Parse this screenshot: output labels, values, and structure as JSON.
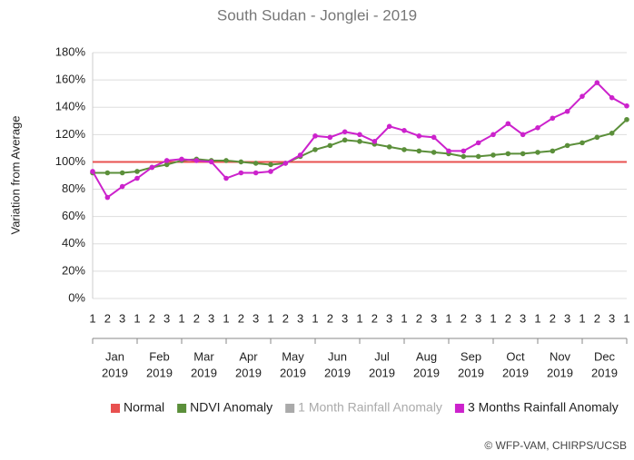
{
  "chart_data": {
    "type": "line",
    "title": "South Sudan - Jonglei - 2019",
    "y_label": "Variation from Average",
    "categories": [
      "1",
      "2",
      "3",
      "1",
      "2",
      "3",
      "1",
      "2",
      "3",
      "1",
      "2",
      "3",
      "1",
      "2",
      "3",
      "1",
      "2",
      "3",
      "1",
      "2",
      "3",
      "1",
      "2",
      "3",
      "1",
      "2",
      "3",
      "1",
      "2",
      "3",
      "1",
      "2",
      "3",
      "1",
      "2",
      "3",
      "1"
    ],
    "month_labels": [
      [
        "Jan",
        "2019"
      ],
      [
        "Feb",
        "2019"
      ],
      [
        "Mar",
        "2019"
      ],
      [
        "Apr",
        "2019"
      ],
      [
        "May",
        "2019"
      ],
      [
        "Jun",
        "2019"
      ],
      [
        "Jul",
        "2019"
      ],
      [
        "Aug",
        "2019"
      ],
      [
        "Sep",
        "2019"
      ],
      [
        "Oct",
        "2019"
      ],
      [
        "Nov",
        "2019"
      ],
      [
        "Dec",
        "2019"
      ]
    ],
    "series": [
      {
        "name": "Normal",
        "color": "#e8504f",
        "markers": false,
        "visible": true,
        "values": [
          100,
          100,
          100,
          100,
          100,
          100,
          100,
          100,
          100,
          100,
          100,
          100,
          100,
          100,
          100,
          100,
          100,
          100,
          100,
          100,
          100,
          100,
          100,
          100,
          100,
          100,
          100,
          100,
          100,
          100,
          100,
          100,
          100,
          100,
          100,
          100,
          100
        ]
      },
      {
        "name": "NDVI Anomaly",
        "color": "#5b8f3a",
        "markers": true,
        "visible": true,
        "values": [
          92,
          92,
          92,
          93,
          96,
          98,
          101,
          102,
          101,
          101,
          100,
          99,
          98,
          99,
          104,
          109,
          112,
          116,
          115,
          113,
          111,
          109,
          108,
          107,
          106,
          104,
          104,
          105,
          106,
          106,
          107,
          108,
          112,
          114,
          118,
          121,
          131
        ]
      },
      {
        "name": "1 Month Rainfall Anomaly",
        "color": "#aaaaaa",
        "markers": true,
        "visible": false,
        "values": [
          null,
          null,
          null,
          null,
          null,
          null,
          null,
          null,
          null,
          null,
          null,
          null,
          null,
          null,
          null,
          null,
          null,
          null,
          null,
          null,
          null,
          null,
          null,
          null,
          null,
          null,
          null,
          null,
          null,
          null,
          null,
          null,
          null,
          null,
          null,
          null,
          null
        ]
      },
      {
        "name": "3 Months Rainfall Anomaly",
        "color": "#cc22cc",
        "markers": true,
        "visible": true,
        "values": [
          93,
          74,
          82,
          88,
          96,
          101,
          102,
          101,
          100,
          88,
          92,
          92,
          93,
          99,
          105,
          119,
          118,
          122,
          120,
          115,
          126,
          123,
          119,
          118,
          108,
          108,
          114,
          120,
          128,
          120,
          125,
          132,
          137,
          148,
          158,
          147,
          141
        ]
      }
    ],
    "ylim": [
      0,
      180
    ],
    "yticks": [
      {
        "value": 0,
        "label": "0%"
      },
      {
        "value": 20,
        "label": "20%"
      },
      {
        "value": 40,
        "label": "40%"
      },
      {
        "value": 60,
        "label": "60%"
      },
      {
        "value": 80,
        "label": "80%"
      },
      {
        "value": 100,
        "label": "100%"
      },
      {
        "value": 120,
        "label": "120%"
      },
      {
        "value": 140,
        "label": "140%"
      },
      {
        "value": 160,
        "label": "160%"
      },
      {
        "value": 180,
        "label": "180%"
      }
    ],
    "grid": true,
    "credit": "© WFP-VAM, CHIRPS/UCSB"
  }
}
